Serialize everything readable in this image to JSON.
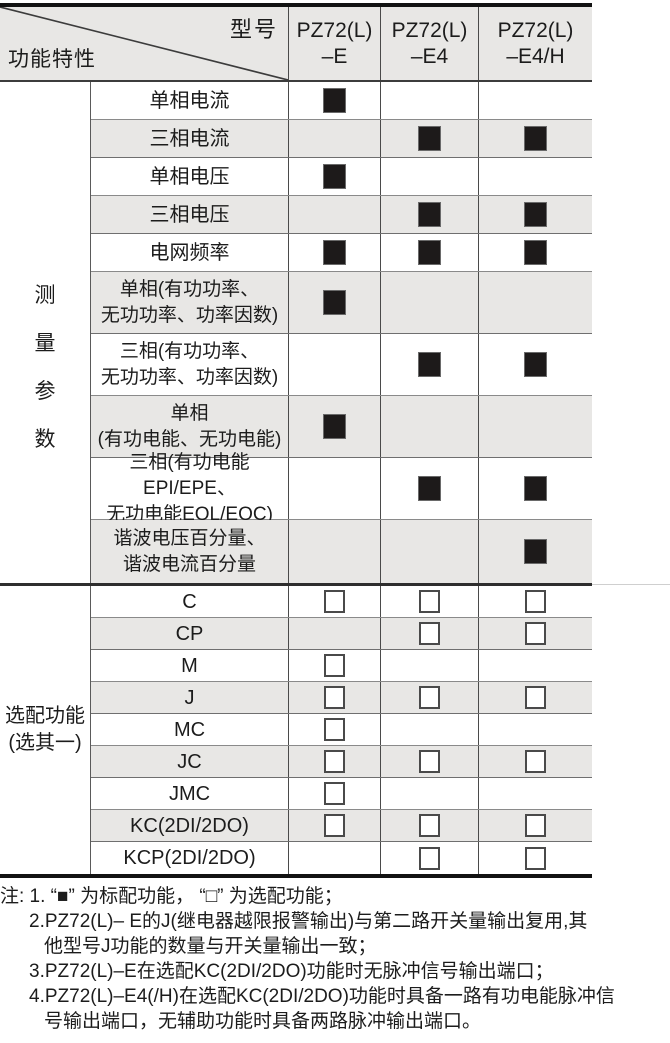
{
  "table": {
    "corner": {
      "model_label": "型号",
      "feature_label": "功能特性"
    },
    "columns": [
      {
        "line1": "PZ72(L)",
        "line2": "–E"
      },
      {
        "line1": "PZ72(L)",
        "line2": "–E4"
      },
      {
        "line1": "PZ72(L)",
        "line2": "–E4/H"
      }
    ],
    "sections": [
      {
        "category_lines": [
          "测",
          "量",
          "参",
          "数"
        ],
        "mark_type": "filled",
        "rows": [
          {
            "label_lines": [
              "单相电流"
            ],
            "marks": [
              1,
              0,
              0
            ]
          },
          {
            "label_lines": [
              "三相电流"
            ],
            "marks": [
              0,
              1,
              1
            ]
          },
          {
            "label_lines": [
              "单相电压"
            ],
            "marks": [
              1,
              0,
              0
            ]
          },
          {
            "label_lines": [
              "三相电压"
            ],
            "marks": [
              0,
              1,
              1
            ]
          },
          {
            "label_lines": [
              "电网频率"
            ],
            "marks": [
              1,
              1,
              1
            ]
          },
          {
            "label_lines": [
              "单相(有功功率、",
              "无功功率、功率因数)"
            ],
            "marks": [
              1,
              0,
              0
            ]
          },
          {
            "label_lines": [
              "三相(有功功率、",
              "无功功率、功率因数)"
            ],
            "marks": [
              0,
              1,
              1
            ]
          },
          {
            "label_lines": [
              "单相",
              "(有功电能、无功电能)"
            ],
            "marks": [
              1,
              0,
              0
            ]
          },
          {
            "label_lines": [
              "三相(有功电能EPI/EPE、",
              "无功电能EQL/EQC)"
            ],
            "marks": [
              0,
              1,
              1
            ]
          },
          {
            "label_lines": [
              "谐波电压百分量、",
              "谐波电流百分量"
            ],
            "marks": [
              0,
              0,
              1
            ]
          }
        ]
      },
      {
        "category_lines": [
          "选配功能",
          "(选其一)"
        ],
        "mark_type": "empty",
        "rows": [
          {
            "label_lines": [
              "C"
            ],
            "marks": [
              1,
              1,
              1
            ]
          },
          {
            "label_lines": [
              "CP"
            ],
            "marks": [
              0,
              1,
              1
            ]
          },
          {
            "label_lines": [
              "M"
            ],
            "marks": [
              1,
              0,
              0
            ]
          },
          {
            "label_lines": [
              "J"
            ],
            "marks": [
              1,
              1,
              1
            ]
          },
          {
            "label_lines": [
              "MC"
            ],
            "marks": [
              1,
              0,
              0
            ]
          },
          {
            "label_lines": [
              "JC"
            ],
            "marks": [
              1,
              1,
              1
            ]
          },
          {
            "label_lines": [
              "JMC"
            ],
            "marks": [
              1,
              0,
              0
            ]
          },
          {
            "label_lines": [
              "KC(2DI/2DO)"
            ],
            "marks": [
              1,
              1,
              1
            ]
          },
          {
            "label_lines": [
              "KCP(2DI/2DO)"
            ],
            "marks": [
              0,
              1,
              1
            ]
          }
        ]
      }
    ]
  },
  "legend": {
    "standard_mark": "■",
    "optional_mark": "□"
  },
  "notes": {
    "lines": [
      {
        "text": "注: 1. “■” 为标配功能， “□” 为选配功能；",
        "indent": 0
      },
      {
        "text": "2.PZ72(L)– E的J(继电器越限报警输出)与第二路开关量输出复用,其",
        "indent": 1
      },
      {
        "text": "他型号J功能的数量与开关量输出一致；",
        "indent": 2
      },
      {
        "text": "3.PZ72(L)–E在选配KC(2DI/2DO)功能时无脉冲信号输出端口；",
        "indent": 1
      },
      {
        "text": "4.PZ72(L)–E4(/H)在选配KC(2DI/2DO)功能时具备一路有功电能脉冲信",
        "indent": 1
      },
      {
        "text": "号输出端口，无辅助功能时具备两路脉冲输出端口。",
        "indent": 2
      }
    ]
  },
  "colors": {
    "row_alt_bg": "#e8e7e5",
    "header_bg": "#e8e7e5",
    "mark_fill": "#1d1a1a",
    "border_heavy": "#121212",
    "row_line": "#8a8a8a",
    "column_line": "#4a4a4a"
  }
}
